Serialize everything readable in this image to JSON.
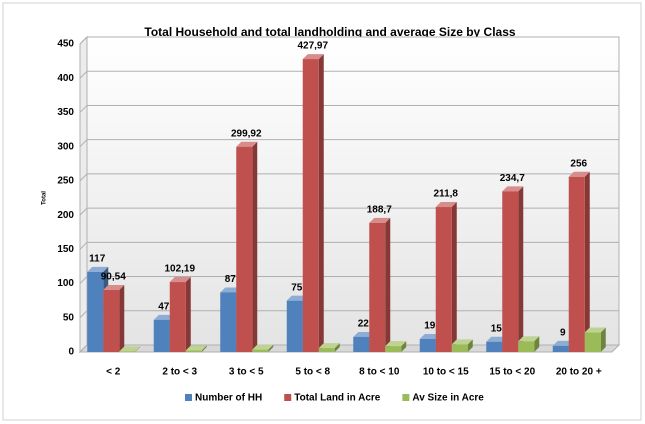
{
  "chart_data": {
    "type": "bar3d",
    "title": "Total Household and total landholding and average Size by Class",
    "y_label": "Total",
    "categories": [
      "< 2",
      "2 to < 3",
      "3 to < 5",
      "5 to < 8",
      "8 to < 10",
      "10 to < 15",
      "15 to < 20",
      "20 to 20 +"
    ],
    "series": [
      {
        "name": "Number of HH",
        "color": "#4f81bd",
        "values": [
          117,
          47,
          87,
          75,
          22,
          19,
          15,
          9
        ]
      },
      {
        "name": "Total Land in Acre",
        "color": "#c0504d",
        "values": [
          90.54,
          102.19,
          299.92,
          427.97,
          188.7,
          211.8,
          234.7,
          256
        ],
        "value_labels": [
          "90,54",
          "102,19",
          "299,92",
          "427,97",
          "188,7",
          "211,8",
          "234,7",
          "256"
        ]
      },
      {
        "name": "Av Size in Acre",
        "color": "#9bbb59",
        "values": [
          0.77,
          2.17,
          3.45,
          5.71,
          8.58,
          11.15,
          15.65,
          28.44
        ]
      }
    ],
    "ylim": [
      0,
      450
    ],
    "yticks": [
      0,
      50,
      100,
      150,
      200,
      250,
      300,
      350,
      400,
      450
    ],
    "grid": true,
    "legend": "bottom"
  }
}
